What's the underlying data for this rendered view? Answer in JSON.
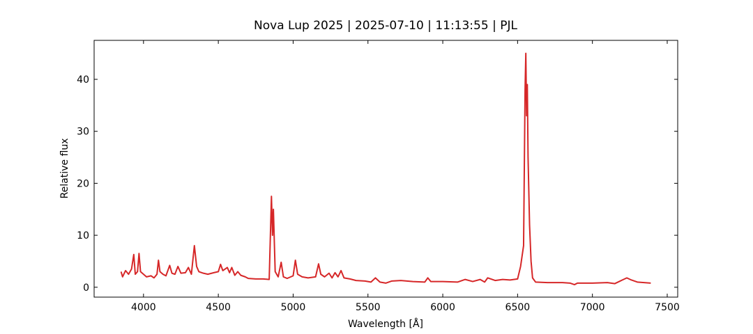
{
  "chart_data": {
    "type": "line",
    "title": "Nova Lup 2025 | 2025-07-10 | 11:13:55 | PJL",
    "xlabel": "Wavelength [Å]",
    "ylabel": "Relative flux",
    "xlim": [
      3670,
      7570
    ],
    "ylim": [
      -1.9,
      47.5
    ],
    "xticks": [
      4000,
      4500,
      5000,
      5500,
      6000,
      6500,
      7000,
      7500
    ],
    "yticks": [
      0,
      10,
      20,
      30,
      40
    ],
    "grid": false,
    "x": [
      3850,
      3860,
      3880,
      3900,
      3920,
      3935,
      3945,
      3960,
      3970,
      3980,
      4000,
      4020,
      4050,
      4070,
      4090,
      4100,
      4110,
      4130,
      4150,
      4175,
      4190,
      4210,
      4230,
      4250,
      4280,
      4300,
      4320,
      4340,
      4355,
      4370,
      4400,
      4430,
      4470,
      4500,
      4515,
      4530,
      4560,
      4575,
      4590,
      4610,
      4630,
      4650,
      4680,
      4700,
      4750,
      4800,
      4840,
      4855,
      4862,
      4868,
      4880,
      4900,
      4920,
      4935,
      4960,
      5000,
      5015,
      5030,
      5060,
      5100,
      5150,
      5170,
      5185,
      5210,
      5240,
      5260,
      5280,
      5300,
      5320,
      5340,
      5380,
      5420,
      5480,
      5520,
      5550,
      5580,
      5620,
      5660,
      5720,
      5800,
      5880,
      5900,
      5920,
      6000,
      6100,
      6150,
      6200,
      6250,
      6280,
      6300,
      6350,
      6400,
      6450,
      6500,
      6520,
      6540,
      6550,
      6555,
      6560,
      6565,
      6570,
      6580,
      6590,
      6600,
      6620,
      6700,
      6800,
      6850,
      6880,
      6900,
      7000,
      7100,
      7150,
      7200,
      7230,
      7260,
      7300,
      7390
    ],
    "series": [
      {
        "color": "#d62728",
        "values": [
          3,
          2,
          3.2,
          2.5,
          3.5,
          6.3,
          2.5,
          3,
          6.5,
          3,
          2.5,
          2,
          2.2,
          1.8,
          2.5,
          5.2,
          3,
          2.5,
          2.2,
          4.2,
          2.7,
          2.5,
          4,
          2.7,
          2.8,
          3.8,
          2.5,
          8,
          4,
          3,
          2.7,
          2.5,
          2.8,
          3,
          4.4,
          3.2,
          3.8,
          2.8,
          3.8,
          2.3,
          3,
          2.3,
          2,
          1.7,
          1.6,
          1.6,
          1.5,
          17.5,
          10,
          15,
          3,
          2,
          4.8,
          2,
          1.7,
          2.2,
          5.2,
          2.5,
          2,
          1.8,
          2,
          4.5,
          2.5,
          2,
          2.7,
          1.8,
          2.8,
          2,
          3.2,
          1.8,
          1.6,
          1.3,
          1.2,
          1,
          1.8,
          1,
          0.8,
          1.2,
          1.3,
          1.1,
          1,
          1.8,
          1.1,
          1.1,
          1,
          1.5,
          1.1,
          1.5,
          1,
          1.8,
          1.3,
          1.5,
          1.4,
          1.6,
          4,
          8,
          38,
          45,
          33,
          39,
          25,
          12,
          5,
          1.8,
          1,
          0.9,
          0.9,
          0.8,
          0.5,
          0.8,
          0.8,
          0.9,
          0.7,
          1.4,
          1.8,
          1.4,
          1,
          0.8
        ]
      }
    ]
  }
}
